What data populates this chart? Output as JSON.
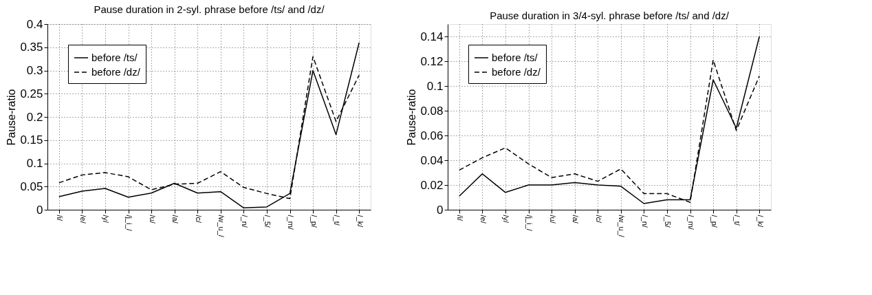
{
  "chart_data": [
    {
      "type": "line",
      "title": "Pause duration in 2-syl. phrase before /ts/ and /dz/",
      "ylabel": "Pause-ratio",
      "categories": [
        "/i/",
        "/e/",
        "/y/",
        "/j_i_/",
        "/u/",
        "/a/",
        "/c/",
        "/w_u_/",
        "/_n/",
        "/_5/",
        "/_m/",
        "/_p/",
        "/_t/",
        "/_k/"
      ],
      "series": [
        {
          "name": "before /ts/",
          "color": "#000000",
          "line_style": "solid",
          "values": [
            0.028,
            0.04,
            0.046,
            0.027,
            0.036,
            0.057,
            0.036,
            0.039,
            0.004,
            0.006,
            0.035,
            0.3,
            0.162,
            0.36
          ]
        },
        {
          "name": "before /dz/",
          "color": "#000000",
          "line_style": "dashed",
          "values": [
            0.058,
            0.075,
            0.08,
            0.071,
            0.043,
            0.055,
            0.057,
            0.082,
            0.048,
            0.035,
            0.024,
            0.33,
            0.19,
            0.29
          ]
        }
      ],
      "ylim": [
        0,
        0.4
      ],
      "yticks": [
        0,
        0.05,
        0.1,
        0.15,
        0.2,
        0.25,
        0.3,
        0.35,
        0.4
      ],
      "grid": true,
      "legend": "top left",
      "marker": "none"
    },
    {
      "type": "line",
      "title": "Pause duration in 3/4-syl. phrase before /ts/ and /dz/",
      "ylabel": "Pause-ratio",
      "categories": [
        "/i/",
        "/e/",
        "/y/",
        "/j_i_/",
        "/u/",
        "/a/",
        "/c/",
        "/w_u_/",
        "/_n/",
        "/_5/",
        "/_m/",
        "/_p/",
        "/_t/",
        "/_k/"
      ],
      "series": [
        {
          "name": "before /ts/",
          "color": "#000000",
          "line_style": "solid",
          "values": [
            0.011,
            0.029,
            0.014,
            0.02,
            0.02,
            0.022,
            0.02,
            0.019,
            0.005,
            0.008,
            0.008,
            0.105,
            0.066,
            0.14
          ]
        },
        {
          "name": "before /dz/",
          "color": "#000000",
          "line_style": "dashed",
          "values": [
            0.032,
            0.042,
            0.05,
            0.037,
            0.026,
            0.029,
            0.023,
            0.033,
            0.013,
            0.013,
            0.006,
            0.121,
            0.064,
            0.108
          ]
        }
      ],
      "ylim": [
        0,
        0.15
      ],
      "yticks": [
        0,
        0.02,
        0.04,
        0.06,
        0.08,
        0.1,
        0.12,
        0.14
      ],
      "grid": true,
      "legend": "top left",
      "marker": "none"
    }
  ]
}
